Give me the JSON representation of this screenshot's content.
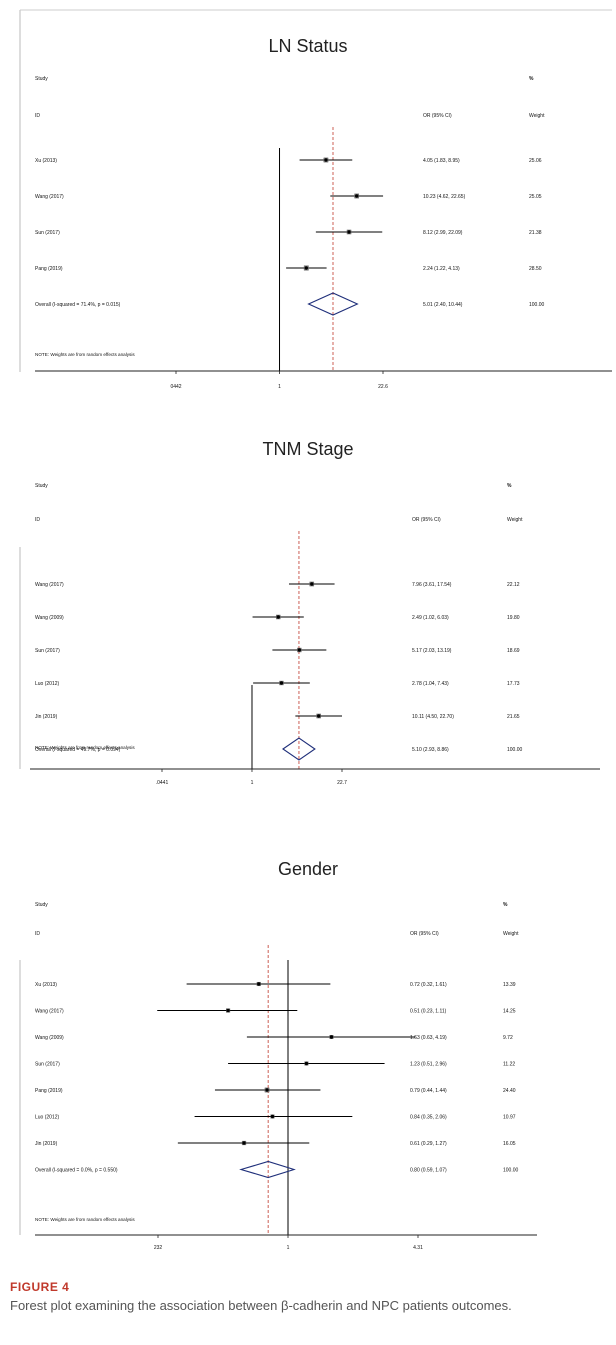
{
  "panels": [
    {
      "type": "forest",
      "title": "LN Status",
      "header": {
        "study": "Study",
        "id": "ID",
        "ci": "OR (95% CI)",
        "pct": "%",
        "weight": "Weight"
      },
      "x_scale": "log",
      "xlim": [
        0.0442,
        22.6
      ],
      "ticks": [
        "0442",
        "1",
        "22.6"
      ],
      "tick_values": [
        0.0442,
        1,
        22.6
      ],
      "studies": [
        {
          "id": "Xu (2013)",
          "or": 4.05,
          "lo": 1.83,
          "hi": 8.95,
          "ci_text": "4.05 (1.83, 8.95)",
          "weight": "25.06"
        },
        {
          "id": "Wang (2017)",
          "or": 10.23,
          "lo": 4.62,
          "hi": 22.65,
          "ci_text": "10.23 (4.62, 22.65)",
          "weight": "25.05"
        },
        {
          "id": "Sun (2017)",
          "or": 8.12,
          "lo": 2.99,
          "hi": 22.09,
          "ci_text": "8.12 (2.99, 22.09)",
          "weight": "21.38"
        },
        {
          "id": "Pang (2019)",
          "or": 2.24,
          "lo": 1.22,
          "hi": 4.13,
          "ci_text": "2.24 (1.22, 4.13)",
          "weight": "28.50"
        }
      ],
      "overall": {
        "id": "Overall (I-squared = 71.4%, p = 0.015)",
        "or": 5.01,
        "lo": 2.4,
        "hi": 10.44,
        "ci_text": "5.01 (2.40, 10.44)",
        "weight": "100.00"
      },
      "note": "NOTE: Weights are from random effects analysis"
    },
    {
      "type": "forest",
      "title": "TNM Stage",
      "header": {
        "study": "Study",
        "id": "ID",
        "ci": "OR (95% CI)",
        "pct": "%",
        "weight": "Weight"
      },
      "x_scale": "log",
      "xlim": [
        0.0441,
        22.7
      ],
      "ticks": [
        ".0441",
        "1",
        "22.7"
      ],
      "tick_values": [
        0.0441,
        1,
        22.7
      ],
      "studies": [
        {
          "id": "Wang (2017)",
          "or": 7.96,
          "lo": 3.61,
          "hi": 17.54,
          "ci_text": "7.96 (3.61, 17.54)",
          "weight": "22.12"
        },
        {
          "id": "Wang (2009)",
          "or": 2.49,
          "lo": 1.02,
          "hi": 6.03,
          "ci_text": "2.49 (1.02, 6.03)",
          "weight": "19.80"
        },
        {
          "id": "Sun (2017)",
          "or": 5.17,
          "lo": 2.03,
          "hi": 13.19,
          "ci_text": "5.17 (2.03, 13.19)",
          "weight": "18.69"
        },
        {
          "id": "Luo (2012)",
          "or": 2.78,
          "lo": 1.04,
          "hi": 7.43,
          "ci_text": "2.78 (1.04, 7.43)",
          "weight": "17.73"
        },
        {
          "id": "Jin (2019)",
          "or": 10.11,
          "lo": 4.5,
          "hi": 22.7,
          "ci_text": "10.11 (4.50, 22.70)",
          "weight": "21.65"
        }
      ],
      "overall": {
        "id": "Overall (I-squared = 49.7%, p = 0.094)",
        "or": 5.1,
        "lo": 2.93,
        "hi": 8.86,
        "ci_text": "5.10 (2.93, 8.86)",
        "weight": "100.00"
      },
      "note": "NOTE: Weights are from random effects analysis"
    },
    {
      "type": "forest",
      "title": "Gender",
      "header": {
        "study": "Study",
        "id": "ID",
        "ci": "OR (95% CI)",
        "pct": "%",
        "weight": "Weight"
      },
      "x_scale": "log",
      "xlim": [
        0.232,
        4.31
      ],
      "ticks": [
        "232",
        "1",
        "4.31"
      ],
      "tick_values": [
        0.232,
        1,
        4.31
      ],
      "studies": [
        {
          "id": "Xu (2013)",
          "or": 0.72,
          "lo": 0.32,
          "hi": 1.61,
          "ci_text": "0.72 (0.32, 1.61)",
          "weight": "13.39"
        },
        {
          "id": "Wang (2017)",
          "or": 0.51,
          "lo": 0.23,
          "hi": 1.11,
          "ci_text": "0.51 (0.23, 1.11)",
          "weight": "14.25"
        },
        {
          "id": "Wang (2009)",
          "or": 1.63,
          "lo": 0.63,
          "hi": 4.19,
          "ci_text": "1.63 (0.63, 4.19)",
          "weight": "9.72"
        },
        {
          "id": "Sun (2017)",
          "or": 1.23,
          "lo": 0.51,
          "hi": 2.96,
          "ci_text": "1.23 (0.51, 2.96)",
          "weight": "11.22"
        },
        {
          "id": "Pang (2019)",
          "or": 0.79,
          "lo": 0.44,
          "hi": 1.44,
          "ci_text": "0.79 (0.44, 1.44)",
          "weight": "24.40"
        },
        {
          "id": "Luo (2012)",
          "or": 0.84,
          "lo": 0.35,
          "hi": 2.06,
          "ci_text": "0.84 (0.35, 2.06)",
          "weight": "10.97"
        },
        {
          "id": "Jin (2019)",
          "or": 0.61,
          "lo": 0.29,
          "hi": 1.27,
          "ci_text": "0.61 (0.29, 1.27)",
          "weight": "16.05"
        }
      ],
      "overall": {
        "id": "Overall (I-squared = 0.0%, p = 0.550)",
        "or": 0.8,
        "lo": 0.59,
        "hi": 1.07,
        "ci_text": "0.80 (0.59, 1.07)",
        "weight": "100.00"
      },
      "note": "NOTE: Weights are from random effects analysis"
    }
  ],
  "caption": {
    "label": "FIGURE 4",
    "text": "Forest plot examining the association between β-cadherin and NPC patients outcomes."
  },
  "colors": {
    "ref_line": "#000000",
    "pooled_line": "#c0392b",
    "diamond": "#1f2f7a",
    "ci_line": "#000000",
    "caption_label": "#c0392b"
  }
}
